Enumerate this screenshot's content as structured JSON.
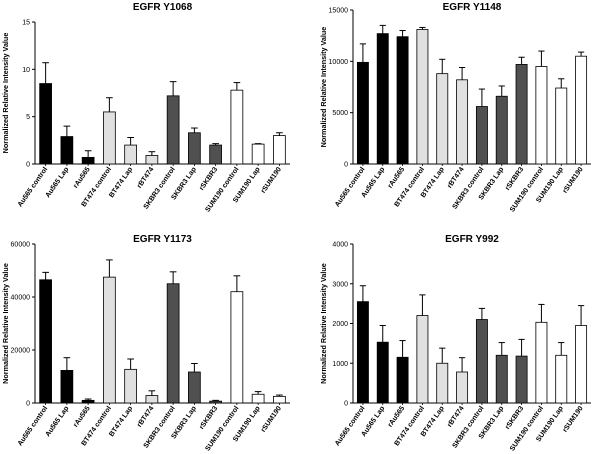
{
  "chart_data": [
    {
      "type": "bar",
      "title": "EGFR Y1068",
      "ylabel": "Normalized Relative Intensity Value",
      "ylim": [
        0,
        15
      ],
      "yticks": [
        0,
        5,
        10,
        15
      ],
      "categories": [
        "Au565 control",
        "Au565 Lap",
        "rAu565",
        "BT474 control",
        "BT474 Lap",
        "rBT474",
        "SKBR3 control",
        "SKBR3 Lap",
        "rSKBR3",
        "SUM190 control",
        "SUM190 Lap",
        "rSUM190"
      ],
      "values": [
        8.5,
        2.9,
        0.7,
        5.5,
        2.0,
        0.9,
        7.2,
        3.3,
        2.0,
        7.8,
        2.1,
        3.0
      ],
      "errors": [
        2.2,
        1.1,
        0.7,
        1.5,
        0.8,
        0.4,
        1.5,
        0.5,
        0.15,
        0.8,
        0.05,
        0.3
      ],
      "colors": [
        "#000000",
        "#000000",
        "#000000",
        "#e0e0e0",
        "#e0e0e0",
        "#e0e0e0",
        "#505050",
        "#505050",
        "#505050",
        "#ffffff",
        "#ffffff",
        "#ffffff"
      ]
    },
    {
      "type": "bar",
      "title": "EGFR Y1148",
      "ylabel": "Normalized Relative Intensity Value",
      "ylim": [
        0,
        15000
      ],
      "yticks": [
        0,
        5000,
        10000,
        15000
      ],
      "categories": [
        "Au565 control",
        "Au565 Lap",
        "rAu565",
        "BT474 control",
        "BT474 Lap",
        "rBT474",
        "SKBR3 control",
        "SKBR3 Lap",
        "rSKBR3",
        "SUM190 control",
        "SUM190 Lap",
        "rSUM190"
      ],
      "values": [
        9900,
        12700,
        12400,
        13100,
        8800,
        8200,
        5600,
        6600,
        9700,
        9500,
        7400,
        10500
      ],
      "errors": [
        1800,
        800,
        600,
        200,
        1400,
        1200,
        1700,
        1000,
        700,
        1500,
        900,
        400
      ],
      "colors": [
        "#000000",
        "#000000",
        "#000000",
        "#e0e0e0",
        "#e0e0e0",
        "#e0e0e0",
        "#505050",
        "#505050",
        "#505050",
        "#ffffff",
        "#ffffff",
        "#ffffff"
      ]
    },
    {
      "type": "bar",
      "title": "EGFR Y1173",
      "ylabel": "Normalized Relative Intensity Value",
      "ylim": [
        0,
        60000
      ],
      "yticks": [
        0,
        20000,
        40000,
        60000
      ],
      "categories": [
        "Au565 control",
        "Au565 Lap",
        "rAu565",
        "BT474 control",
        "BT474 Lap",
        "rBT474",
        "SKBR3 control",
        "SKBR3 Lap",
        "rSKBR3",
        "SUM190 control",
        "SUM190 Lap",
        "rSUM190"
      ],
      "values": [
        46500,
        12300,
        1000,
        47500,
        12700,
        2800,
        45000,
        11700,
        700,
        42000,
        3300,
        2500
      ],
      "errors": [
        2800,
        4800,
        500,
        6500,
        3900,
        1800,
        4500,
        3200,
        300,
        6000,
        1000,
        500
      ],
      "colors": [
        "#000000",
        "#000000",
        "#000000",
        "#e0e0e0",
        "#e0e0e0",
        "#e0e0e0",
        "#505050",
        "#505050",
        "#505050",
        "#ffffff",
        "#ffffff",
        "#ffffff"
      ]
    },
    {
      "type": "bar",
      "title": "EGFR Y992",
      "ylabel": "Normalized Relative Intensity Value",
      "ylim": [
        0,
        4000
      ],
      "yticks": [
        0,
        1000,
        2000,
        3000,
        4000
      ],
      "categories": [
        "Au565 control",
        "Au565 Lap",
        "rAu565",
        "BT474 control",
        "BT474 Lap",
        "rBT474",
        "SKBR3 control",
        "SKBR3 Lap",
        "rSKBR3",
        "SUM190 control",
        "SUM190 Lap",
        "rSUM190"
      ],
      "values": [
        2550,
        1530,
        1150,
        2200,
        1000,
        780,
        2100,
        1200,
        1180,
        2030,
        1200,
        1950
      ],
      "errors": [
        400,
        420,
        420,
        520,
        380,
        360,
        280,
        320,
        420,
        450,
        320,
        500
      ],
      "colors": [
        "#000000",
        "#000000",
        "#000000",
        "#e0e0e0",
        "#e0e0e0",
        "#e0e0e0",
        "#505050",
        "#505050",
        "#505050",
        "#ffffff",
        "#ffffff",
        "#ffffff"
      ]
    }
  ]
}
